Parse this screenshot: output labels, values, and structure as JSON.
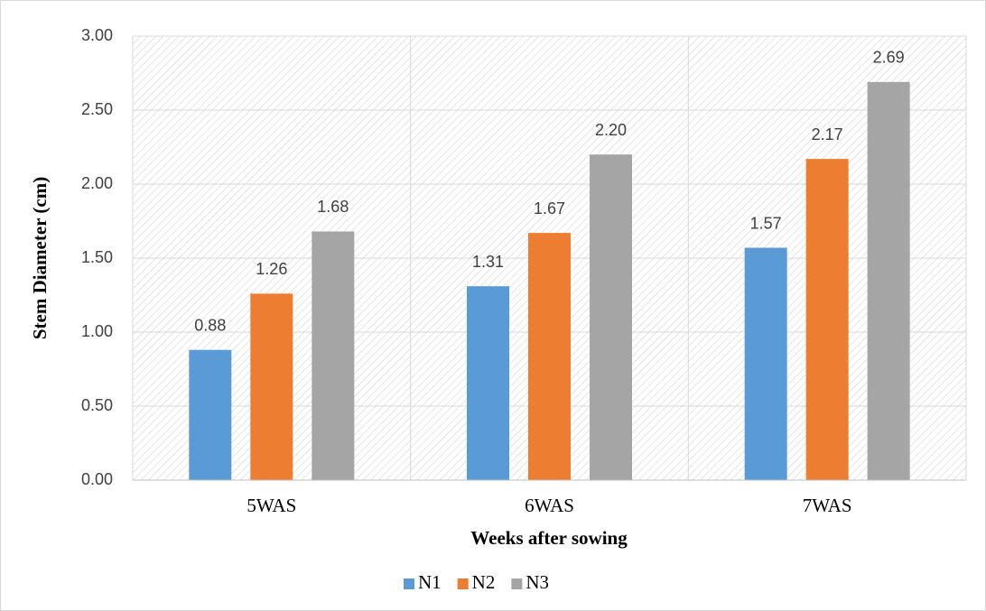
{
  "chart_data": {
    "type": "bar",
    "categories": [
      "5WAS",
      "6WAS",
      "7WAS"
    ],
    "series": [
      {
        "name": "N1",
        "color": "#5b9bd5",
        "values": [
          0.88,
          1.31,
          1.57
        ],
        "value_labels": [
          "0.88",
          "1.31",
          "1.57"
        ]
      },
      {
        "name": "N2",
        "color": "#ed7d31",
        "values": [
          1.26,
          1.67,
          2.17
        ],
        "value_labels": [
          "1.26",
          "1.67",
          "2.17"
        ]
      },
      {
        "name": "N3",
        "color": "#a5a5a5",
        "values": [
          1.68,
          2.2,
          2.69
        ],
        "value_labels": [
          "1.68",
          "2.20",
          "2.69"
        ]
      }
    ],
    "y_label": "Stem Diameter (cm)",
    "x_label": "Weeks after sowing",
    "ylim": [
      0,
      3
    ],
    "yticks": [
      {
        "value": 0,
        "label": "0.00"
      },
      {
        "value": 0.5,
        "label": "0.50"
      },
      {
        "value": 1,
        "label": "1.00"
      },
      {
        "value": 1.5,
        "label": "1.50"
      },
      {
        "value": 2,
        "label": "2.00"
      },
      {
        "value": 2.5,
        "label": "2.50"
      },
      {
        "value": 3,
        "label": "3.00"
      }
    ],
    "grid": true,
    "legend": "bottom"
  }
}
